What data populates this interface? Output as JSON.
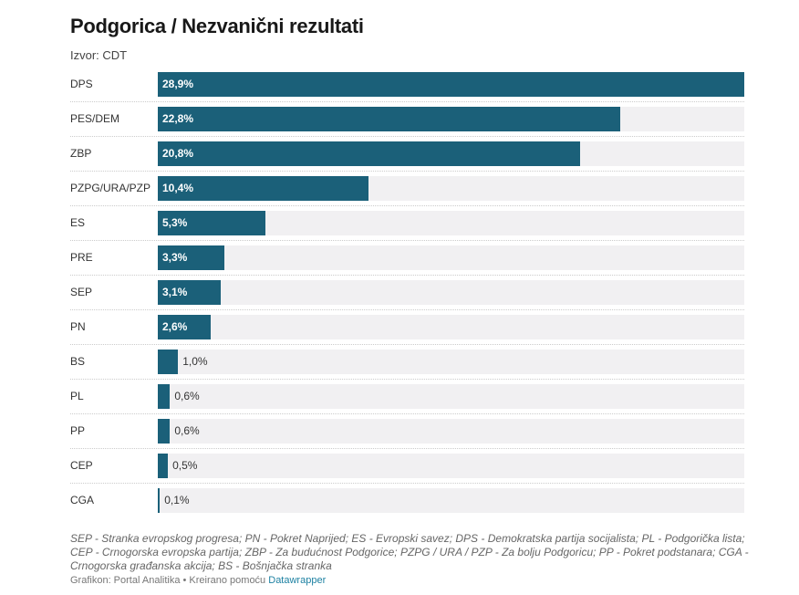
{
  "chart_data": {
    "type": "bar",
    "title": "Podgorica / Nezvanični rezultati",
    "subtitle": "Izvor: CDT",
    "categories": [
      "DPS",
      "PES/DEM",
      "ZBP",
      "PZPG/URA/PZP",
      "ES",
      "PRE",
      "SEP",
      "PN",
      "BS",
      "PL",
      "PP",
      "CEP",
      "CGA"
    ],
    "values": [
      28.9,
      22.8,
      20.8,
      10.4,
      5.3,
      3.3,
      3.1,
      2.6,
      1.0,
      0.6,
      0.6,
      0.5,
      0.1
    ],
    "value_labels": [
      "28,9%",
      "22,8%",
      "20,8%",
      "10,4%",
      "5,3%",
      "3,3%",
      "3,1%",
      "2,6%",
      "1,0%",
      "0,6%",
      "0,6%",
      "0,5%",
      "0,1%"
    ],
    "xlim": [
      0,
      28.9
    ],
    "bar_color": "#1b6079",
    "track_color": "#f1f0f2"
  },
  "notes": "SEP - Stranka evropskog progresa; PN - Pokret Naprijed; ES - Evropski savez; DPS - Demokratska partija socijalista; PL - Podgorička lista; CEP - Crnogorska evropska partija; ZBP - Za budućnost Podgorice; PZPG / URA / PZP - Za bolju Podgoricu; PP - Pokret podstanara; CGA - Crnogorska građanska akcija; BS - Bošnjačka stranka",
  "credit": {
    "text": "Grafikon: Portal Analitika • Kreirano pomoću",
    "link": "Datawrapper"
  }
}
